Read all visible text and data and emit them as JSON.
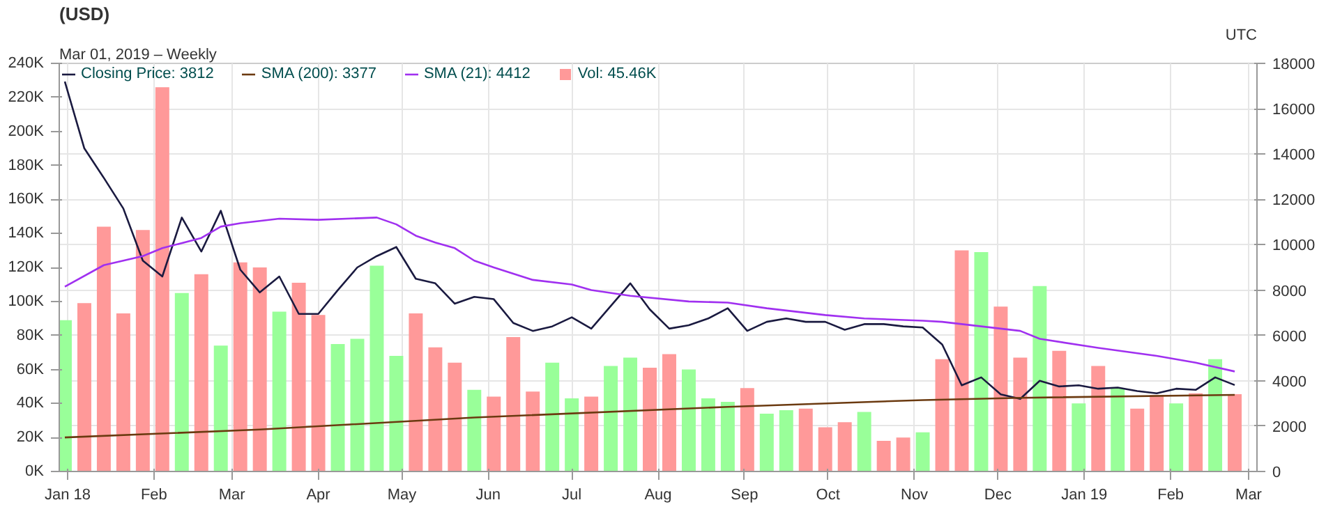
{
  "chart_data": {
    "type": "bar",
    "title": "(USD)",
    "subtitle": "Mar 01, 2019 – Weekly",
    "annotations": [
      "UTC"
    ],
    "x": [
      "2017-12-31",
      "2018-01-07",
      "2018-01-14",
      "2018-01-21",
      "2018-01-28",
      "2018-02-04",
      "2018-02-11",
      "2018-02-18",
      "2018-02-25",
      "2018-03-04",
      "2018-03-11",
      "2018-03-18",
      "2018-03-25",
      "2018-04-01",
      "2018-04-08",
      "2018-04-15",
      "2018-04-22",
      "2018-04-29",
      "2018-05-06",
      "2018-05-13",
      "2018-05-20",
      "2018-05-27",
      "2018-06-03",
      "2018-06-10",
      "2018-06-17",
      "2018-06-24",
      "2018-07-01",
      "2018-07-08",
      "2018-07-15",
      "2018-07-22",
      "2018-07-29",
      "2018-08-05",
      "2018-08-12",
      "2018-08-19",
      "2018-08-26",
      "2018-09-02",
      "2018-09-09",
      "2018-09-16",
      "2018-09-23",
      "2018-09-30",
      "2018-10-07",
      "2018-10-14",
      "2018-10-21",
      "2018-10-28",
      "2018-11-04",
      "2018-11-11",
      "2018-11-18",
      "2018-11-25",
      "2018-12-02",
      "2018-12-09",
      "2018-12-16",
      "2018-12-23",
      "2018-12-30",
      "2019-01-06",
      "2019-01-13",
      "2019-01-20",
      "2019-01-27",
      "2019-02-03",
      "2019-02-10",
      "2019-02-17",
      "2019-02-24"
    ],
    "series": [
      {
        "name": "Closing Price: 3812",
        "type": "line",
        "axis": "y2",
        "color": "#1a1a40",
        "values": [
          17200,
          14250,
          12950,
          11600,
          9300,
          8600,
          11200,
          9700,
          11500,
          8900,
          7900,
          8600,
          6950,
          6950,
          8000,
          9000,
          9500,
          9900,
          8500,
          8300,
          7400,
          7700,
          7600,
          6550,
          6200,
          6400,
          6800,
          6300,
          7300,
          8300,
          7150,
          6300,
          6450,
          6750,
          7200,
          6200,
          6600,
          6750,
          6600,
          6600,
          6250,
          6500,
          6500,
          6400,
          6350,
          5600,
          3800,
          4150,
          3400,
          3200,
          4000,
          3750,
          3800,
          3650,
          3700,
          3550,
          3450,
          3650,
          3600,
          4150,
          3812
        ]
      },
      {
        "name": "SMA (200): 3377",
        "type": "line",
        "axis": "y2",
        "color": "#6b3a10",
        "x": [
          "2017-12-31",
          "2018-03-11",
          "2018-05-27",
          "2018-08-26",
          "2018-11-04",
          "2018-12-09",
          "2019-02-24"
        ],
        "values": [
          1500,
          1850,
          2380,
          2850,
          3150,
          3250,
          3377
        ]
      },
      {
        "name": "SMA (21): 4412",
        "type": "line",
        "axis": "y2",
        "color": "#a030f0",
        "x": [
          "2017-12-31",
          "2018-01-14",
          "2018-01-28",
          "2018-02-04",
          "2018-02-18",
          "2018-02-25",
          "2018-03-04",
          "2018-03-18",
          "2018-04-01",
          "2018-04-22",
          "2018-04-29",
          "2018-05-06",
          "2018-05-13",
          "2018-05-20",
          "2018-05-27",
          "2018-06-03",
          "2018-06-17",
          "2018-07-01",
          "2018-07-08",
          "2018-07-22",
          "2018-08-12",
          "2018-08-26",
          "2018-09-09",
          "2018-09-30",
          "2018-10-14",
          "2018-11-04",
          "2018-11-11",
          "2018-11-25",
          "2018-12-09",
          "2018-12-16",
          "2019-01-06",
          "2019-01-27",
          "2019-02-10",
          "2019-02-24"
        ],
        "values": [
          8150,
          9100,
          9500,
          9850,
          10300,
          10800,
          10950,
          11150,
          11100,
          11200,
          10900,
          10400,
          10100,
          9850,
          9300,
          9000,
          8450,
          8250,
          8000,
          7750,
          7500,
          7450,
          7200,
          6900,
          6750,
          6650,
          6600,
          6400,
          6200,
          5850,
          5450,
          5100,
          4800,
          4412
        ]
      },
      {
        "name": "Vol: 45.46K",
        "color": "#ff9999",
        "values": [
          89000,
          99000,
          144000,
          93000,
          142000,
          226000,
          105000,
          116000,
          74000,
          123000,
          120000,
          94000,
          111000,
          92000,
          75000,
          78000,
          121000,
          68000,
          93000,
          73000,
          64000,
          48000,
          44000,
          79000,
          47000,
          64000,
          43000,
          44000,
          62000,
          67000,
          61000,
          69000,
          60000,
          43000,
          41000,
          49000,
          34000,
          36000,
          37000,
          26000,
          29000,
          35000,
          18000,
          20000,
          23000,
          66000,
          130000,
          129000,
          97000,
          67000,
          109000,
          71000,
          40000,
          62000,
          49000,
          37000,
          45000,
          40000,
          46000,
          66000,
          45460
        ],
        "colors": [
          "#99ff99",
          "#ff9999",
          "#ff9999",
          "#ff9999",
          "#ff9999",
          "#ff9999",
          "#99ff99",
          "#ff9999",
          "#99ff99",
          "#ff9999",
          "#ff9999",
          "#99ff99",
          "#ff9999",
          "#ff9999",
          "#99ff99",
          "#99ff99",
          "#99ff99",
          "#99ff99",
          "#ff9999",
          "#ff9999",
          "#ff9999",
          "#99ff99",
          "#ff9999",
          "#ff9999",
          "#ff9999",
          "#99ff99",
          "#99ff99",
          "#ff9999",
          "#99ff99",
          "#99ff99",
          "#ff9999",
          "#ff9999",
          "#99ff99",
          "#99ff99",
          "#99ff99",
          "#ff9999",
          "#99ff99",
          "#99ff99",
          "#ff9999",
          "#ff9999",
          "#ff9999",
          "#99ff99",
          "#ff9999",
          "#ff9999",
          "#99ff99",
          "#ff9999",
          "#ff9999",
          "#99ff99",
          "#ff9999",
          "#ff9999",
          "#99ff99",
          "#ff9999",
          "#99ff99",
          "#ff9999",
          "#99ff99",
          "#ff9999",
          "#ff9999",
          "#99ff99",
          "#ff9999",
          "#99ff99",
          "#ff9999"
        ]
      }
    ],
    "xlim": [
      "2017-12-29",
      "2019-03-04"
    ],
    "xticks": [
      {
        "value": "2018-01-01",
        "label": "Jan 18"
      },
      {
        "value": "2018-02-01",
        "label": "Feb"
      },
      {
        "value": "2018-03-01",
        "label": "Mar"
      },
      {
        "value": "2018-04-01",
        "label": "Apr"
      },
      {
        "value": "2018-05-01",
        "label": "May"
      },
      {
        "value": "2018-06-01",
        "label": "Jun"
      },
      {
        "value": "2018-07-01",
        "label": "Jul"
      },
      {
        "value": "2018-08-01",
        "label": "Aug"
      },
      {
        "value": "2018-09-01",
        "label": "Sep"
      },
      {
        "value": "2018-10-01",
        "label": "Oct"
      },
      {
        "value": "2018-11-01",
        "label": "Nov"
      },
      {
        "value": "2018-12-01",
        "label": "Dec"
      },
      {
        "value": "2019-01-01",
        "label": "Jan 19"
      },
      {
        "value": "2019-02-01",
        "label": "Feb"
      },
      {
        "value": "2019-03-01",
        "label": "Mar"
      }
    ],
    "ylim": [
      0,
      240000
    ],
    "yticks": [
      {
        "value": 0,
        "label": "0K"
      },
      {
        "value": 20000,
        "label": "20K"
      },
      {
        "value": 40000,
        "label": "40K"
      },
      {
        "value": 60000,
        "label": "60K"
      },
      {
        "value": 80000,
        "label": "80K"
      },
      {
        "value": 100000,
        "label": "100K"
      },
      {
        "value": 120000,
        "label": "120K"
      },
      {
        "value": 140000,
        "label": "140K"
      },
      {
        "value": 160000,
        "label": "160K"
      },
      {
        "value": 180000,
        "label": "180K"
      },
      {
        "value": 200000,
        "label": "200K"
      },
      {
        "value": 220000,
        "label": "220K"
      },
      {
        "value": 240000,
        "label": "240K"
      }
    ],
    "y2lim": [
      0,
      18000
    ],
    "y2ticks": [
      0,
      2000,
      4000,
      6000,
      8000,
      10000,
      12000,
      14000,
      16000,
      18000
    ],
    "grid": true,
    "legend": "top left",
    "marker": "none",
    "line_style": "solid"
  }
}
